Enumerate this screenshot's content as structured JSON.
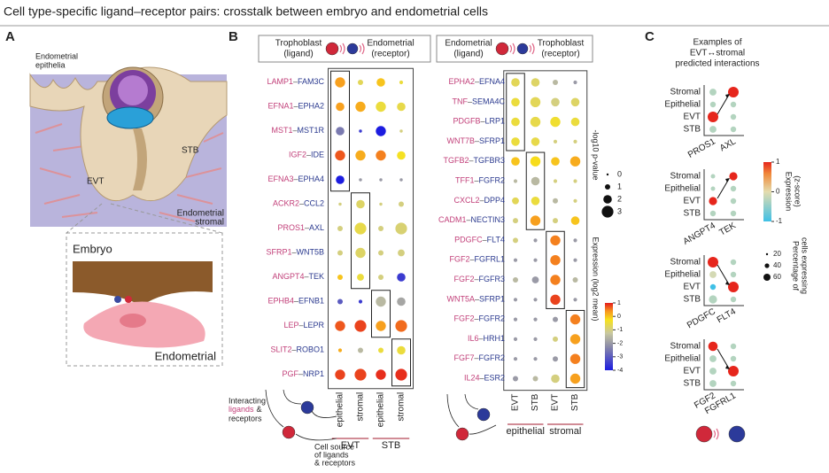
{
  "title": "Cell type-specific ligand–receptor pairs: crosstalk between embryo and endometrial cells",
  "panel_a": {
    "label": "A",
    "epithelia": [
      "Endometrial",
      "epithelia"
    ],
    "stb": "STB",
    "evt": "EVT",
    "stromal": [
      "Endometrial",
      "stromal"
    ],
    "embryo": "Embryo",
    "endometrial": "Endometrial"
  },
  "panel_b": {
    "label": "B",
    "separator": "–",
    "plots": [
      {
        "ligand_header": [
          "Trophoblast",
          "(ligand)"
        ],
        "receptor_header": [
          "Endometrial",
          "(receptor)"
        ],
        "columns": [
          "epithelial",
          "stromal",
          "epithelial",
          "stromal"
        ],
        "groups": [
          "EVT",
          "STB"
        ],
        "rows": [
          {
            "pair": [
              "LAMP1",
              "FAM3C"
            ],
            "p": [
              2.5,
              1,
              2,
              0.5
            ],
            "expr": [
              0.3,
              -0.7,
              0,
              -0.5
            ]
          },
          {
            "pair": [
              "EFNA1",
              "EPHA2"
            ],
            "p": [
              2,
              2.5,
              2.5,
              2
            ],
            "expr": [
              0.3,
              0.2,
              -0.5,
              -0.6
            ]
          },
          {
            "pair": [
              "MST1",
              "MST1R"
            ],
            "p": [
              2,
              0.3,
              2.5,
              0.3
            ],
            "expr": [
              -2.5,
              -3.5,
              -4,
              -1
            ]
          },
          {
            "pair": [
              "IGF2",
              "IDE"
            ],
            "p": [
              2.5,
              2.5,
              2.5,
              2
            ],
            "expr": [
              0.7,
              0.2,
              0.5,
              -0.3
            ]
          },
          {
            "pair": [
              "EFNA3",
              "EPHA4"
            ],
            "p": [
              2,
              0.3,
              0.3,
              0.3
            ],
            "expr": [
              -4,
              -2,
              -2,
              -2
            ]
          },
          {
            "pair": [
              "ACKR2",
              "CCL2"
            ],
            "p": [
              0.3,
              2,
              0.3,
              1
            ],
            "expr": [
              -1,
              -0.8,
              -1,
              -1
            ]
          },
          {
            "pair": [
              "PROS1",
              "AXL"
            ],
            "p": [
              1,
              3,
              1,
              3
            ],
            "expr": [
              -1,
              -0.6,
              -1,
              -0.9
            ]
          },
          {
            "pair": [
              "SFRP1",
              "WNT5B"
            ],
            "p": [
              1,
              2.5,
              1,
              1.5
            ],
            "expr": [
              -1,
              -0.8,
              -1,
              -1
            ]
          },
          {
            "pair": [
              "ANGPT4",
              "TEK"
            ],
            "p": [
              1,
              1.5,
              1,
              2
            ],
            "expr": [
              0,
              -0.5,
              -1,
              -3.5
            ]
          },
          {
            "pair": [
              "EPHB4",
              "EFNB1"
            ],
            "p": [
              1,
              0.5,
              2.5,
              2
            ],
            "expr": [
              -3,
              -3.5,
              -1.5,
              -1.8
            ]
          },
          {
            "pair": [
              "LEP",
              "LEPR"
            ],
            "p": [
              2.5,
              3,
              2.5,
              3
            ],
            "expr": [
              0.7,
              0.8,
              0.3,
              0.6
            ]
          },
          {
            "pair": [
              "SLIT2",
              "ROBO1"
            ],
            "p": [
              0.5,
              1,
              1,
              2
            ],
            "expr": [
              0.2,
              -1.5,
              -0.5,
              -0.5
            ]
          },
          {
            "pair": [
              "PGF",
              "NRP1"
            ],
            "p": [
              2.5,
              3,
              2.5,
              3
            ],
            "expr": [
              0.8,
              0.8,
              0.9,
              0.9
            ]
          }
        ]
      },
      {
        "ligand_header": [
          "Endometrial",
          "(ligand)"
        ],
        "receptor_header": [
          "Trophoblast",
          "(receptor)"
        ],
        "columns": [
          "EVT",
          "STB",
          "EVT",
          "STB"
        ],
        "groups": [
          "epithelial",
          "stromal"
        ],
        "rows": [
          {
            "pair": [
              "EPHA2",
              "EFNA4"
            ],
            "p": [
              2,
              2,
              1,
              0.5
            ],
            "expr": [
              -0.7,
              -0.8,
              -1.5,
              -2
            ]
          },
          {
            "pair": [
              "TNF",
              "SEMA4C"
            ],
            "p": [
              2,
              2.5,
              2,
              2
            ],
            "expr": [
              -0.5,
              -0.7,
              -1,
              -0.8
            ]
          },
          {
            "pair": [
              "PDGFB",
              "LRP1"
            ],
            "p": [
              2,
              2.5,
              2.5,
              2
            ],
            "expr": [
              -0.5,
              -0.6,
              -0.4,
              -0.5
            ]
          },
          {
            "pair": [
              "WNT7B",
              "SFRP1"
            ],
            "p": [
              2,
              2,
              0.5,
              0.5
            ],
            "expr": [
              -0.5,
              -0.6,
              -1,
              -1
            ]
          },
          {
            "pair": [
              "TGFB2",
              "TGFBR3"
            ],
            "p": [
              2,
              2.5,
              2,
              2.5
            ],
            "expr": [
              0,
              -0.2,
              0,
              0.2
            ]
          },
          {
            "pair": [
              "TFF1",
              "FGFR2"
            ],
            "p": [
              0.5,
              2,
              0.5,
              0.5
            ],
            "expr": [
              -1.5,
              -1.5,
              -1,
              -1
            ]
          },
          {
            "pair": [
              "CXCL2",
              "DPP4"
            ],
            "p": [
              1.5,
              2,
              1,
              0.5
            ],
            "expr": [
              -0.7,
              -0.5,
              -1.5,
              -1
            ]
          },
          {
            "pair": [
              "CADM1",
              "NECTIN3"
            ],
            "p": [
              1,
              2.5,
              1,
              2
            ],
            "expr": [
              -1,
              0.3,
              -1,
              0
            ]
          },
          {
            "pair": [
              "PDGFC",
              "FLT4"
            ],
            "p": [
              1,
              0.5,
              2.5,
              0.5
            ],
            "expr": [
              -1,
              -2,
              0.5,
              -2
            ]
          },
          {
            "pair": [
              "FGF2",
              "FGFRL1"
            ],
            "p": [
              0.5,
              0.5,
              2.5,
              0.5
            ],
            "expr": [
              -2,
              -2,
              0.5,
              -2
            ]
          },
          {
            "pair": [
              "FGF2",
              "FGFR3"
            ],
            "p": [
              1,
              1.5,
              2.5,
              1
            ],
            "expr": [
              -1.5,
              -2,
              0.5,
              -1.5
            ]
          },
          {
            "pair": [
              "WNT5A",
              "SFRP1"
            ],
            "p": [
              0.5,
              0.5,
              2.5,
              0.5
            ],
            "expr": [
              -2,
              -2,
              0.8,
              -2
            ]
          },
          {
            "pair": [
              "FGF2",
              "FGFR2"
            ],
            "p": [
              0.5,
              0.5,
              1,
              2.5
            ],
            "expr": [
              -2,
              -2,
              -2,
              0.5
            ]
          },
          {
            "pair": [
              "IL6",
              "HRH1"
            ],
            "p": [
              0.5,
              0.5,
              1,
              2.5
            ],
            "expr": [
              -2,
              -2,
              -1,
              0.3
            ]
          },
          {
            "pair": [
              "FGF7",
              "FGFR2"
            ],
            "p": [
              0.5,
              0.5,
              1,
              2.5
            ],
            "expr": [
              -2,
              -2,
              -2,
              0.5
            ]
          },
          {
            "pair": [
              "IL24",
              "ESR2"
            ],
            "p": [
              1,
              1,
              2,
              2.5
            ],
            "expr": [
              -2,
              -1.5,
              -1,
              0.3
            ]
          }
        ]
      }
    ],
    "pvalue_legend": {
      "title": "-log10 p-value",
      "ticks": [
        0,
        1,
        2,
        3
      ]
    },
    "expr_legend": {
      "title": "Expression (log2 mean)",
      "lim": [
        -4,
        1
      ],
      "ticks": [
        1,
        0,
        -1,
        -2,
        -3,
        -4
      ]
    },
    "interacting": [
      "Interacting",
      "ligands",
      "&",
      "receptors"
    ],
    "source": [
      "Cell source",
      "of",
      "ligands",
      "& receptors"
    ]
  },
  "panel_c": {
    "label": "C",
    "title": [
      "Examples of",
      "EVT↔stromal",
      "predicted interactions"
    ],
    "row_labels": [
      "Stromal",
      "Epithelial",
      "EVT",
      "STB"
    ],
    "plots": [
      {
        "genes": [
          "PROS1",
          "AXL"
        ],
        "pct": [
          [
            30,
            60
          ],
          [
            20,
            20
          ],
          [
            60,
            20
          ],
          [
            30,
            20
          ]
        ],
        "z": [
          [
            -0.3,
            1
          ],
          [
            -0.3,
            -0.3
          ],
          [
            1,
            -0.3
          ],
          [
            -0.3,
            -0.3
          ]
        ]
      },
      {
        "genes": [
          "ANGPT4",
          "TEK"
        ],
        "pct": [
          [
            10,
            40
          ],
          [
            10,
            20
          ],
          [
            40,
            20
          ],
          [
            20,
            20
          ]
        ],
        "z": [
          [
            -0.3,
            1
          ],
          [
            -0.3,
            -0.3
          ],
          [
            1,
            -0.3
          ],
          [
            -0.3,
            -0.3
          ]
        ]
      },
      {
        "genes": [
          "PDGFC",
          "FLT4"
        ],
        "pct": [
          [
            60,
            20
          ],
          [
            30,
            20
          ],
          [
            20,
            60
          ],
          [
            40,
            20
          ]
        ],
        "z": [
          [
            1,
            -0.3
          ],
          [
            -0.1,
            -0.3
          ],
          [
            -1,
            1
          ],
          [
            -0.3,
            -0.3
          ]
        ]
      },
      {
        "genes": [
          "FGF2",
          "FGFRL1"
        ],
        "pct": [
          [
            50,
            20
          ],
          [
            30,
            20
          ],
          [
            30,
            60
          ],
          [
            30,
            20
          ]
        ],
        "z": [
          [
            1,
            -0.3
          ],
          [
            -0.3,
            -0.3
          ],
          [
            -0.3,
            1
          ],
          [
            -0.3,
            -0.3
          ]
        ]
      }
    ],
    "z_legend": {
      "title": [
        "Expression",
        "(z-score)"
      ],
      "lim": [
        -1,
        1
      ],
      "ticks": [
        1,
        0,
        -1
      ]
    },
    "pct_legend": {
      "title": [
        "Percentage of",
        "cells expressing"
      ],
      "ticks": [
        20,
        40,
        60
      ]
    }
  }
}
